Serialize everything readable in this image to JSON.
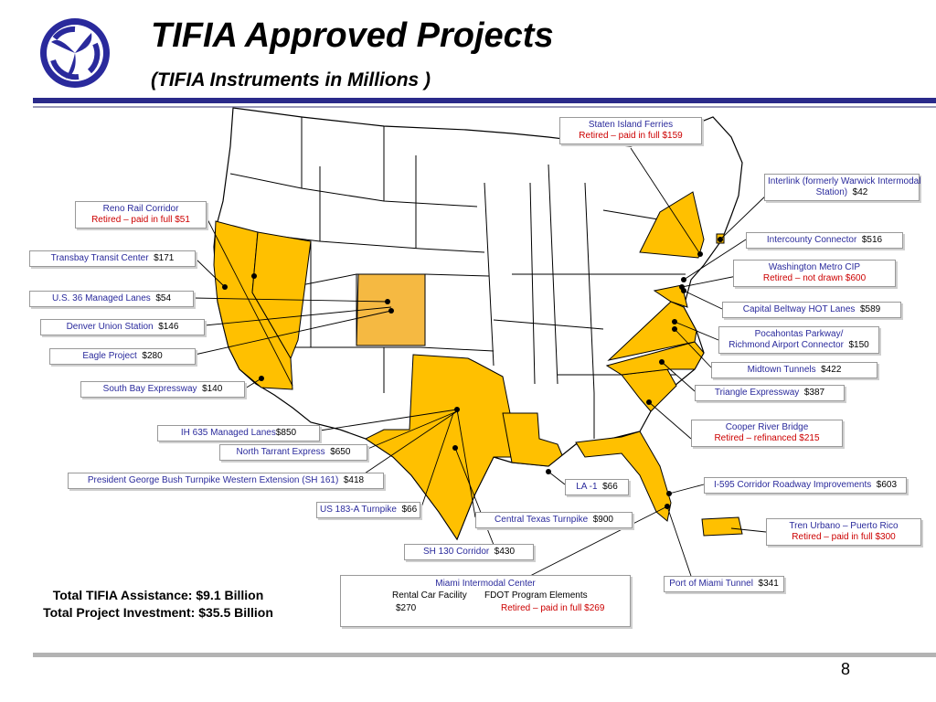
{
  "title": "TIFIA Approved Projects",
  "subtitle": "(TIFIA Instruments in Millions )",
  "page_number": "8",
  "colors": {
    "primary": "#2a2a9c",
    "highlight_state": "#ffc000",
    "highlight_state_alt": "#f5b942",
    "retired": "#cc0000"
  },
  "totals": {
    "assistance": "Total TIFIA Assistance: $9.1 Billion",
    "investment": "Total Project Investment:  $35.5 Billion"
  },
  "projects": {
    "staten": {
      "name": "Staten Island Ferries",
      "status": "Retired – paid in full  $159"
    },
    "interlink": {
      "name": "Interlink (formerly Warwick Intermodal",
      "name2": "Station)",
      "amount": "$42"
    },
    "intercounty": {
      "name": "Intercounty Connector",
      "amount": "$516"
    },
    "wmata": {
      "name": "Washington Metro CIP",
      "status": "Retired – not drawn $600"
    },
    "beltway": {
      "name": "Capital Beltway HOT Lanes",
      "amount": "$589"
    },
    "pocahontas": {
      "name": "Pocahontas Parkway/",
      "name2": "Richmond Airport Connector",
      "amount": "$150"
    },
    "midtown": {
      "name": "Midtown Tunnels",
      "amount": "$422"
    },
    "triangle": {
      "name": "Triangle Expressway",
      "amount": "$387"
    },
    "cooper": {
      "name": "Cooper River Bridge",
      "status": "Retired – refinanced  $215"
    },
    "i595": {
      "name": "I-595 Corridor Roadway Improvements",
      "amount": "$603"
    },
    "tren": {
      "name": "Tren Urbano – Puerto Rico",
      "status": "Retired – paid in full  $300"
    },
    "portmiami": {
      "name": "Port of Miami Tunnel",
      "amount": "$341"
    },
    "miami": {
      "name": "Miami Intermodal Center",
      "rental": "Rental Car Facility",
      "rental_amount": "$270",
      "fdot": "FDOT Program Elements",
      "fdot_status": "Retired – paid in full  $269"
    },
    "sh130": {
      "name": "SH 130 Corridor",
      "amount": "$430"
    },
    "centraltx": {
      "name": "Central Texas Turnpike",
      "amount": "$900"
    },
    "la1": {
      "name": "LA -1",
      "amount": "$66"
    },
    "us183": {
      "name": "US 183-A Turnpike",
      "amount": "$66"
    },
    "pgbt": {
      "name": "President George Bush Turnpike Western Extension (SH 161)",
      "amount": "$418"
    },
    "tarrant": {
      "name": "North Tarrant Express",
      "amount": "$650"
    },
    "ih635": {
      "name": "IH 635 Managed Lanes",
      "amount": "$850"
    },
    "southbay": {
      "name": "South Bay Expressway",
      "amount": "$140"
    },
    "eagle": {
      "name": "Eagle Project",
      "amount": "$280"
    },
    "denver": {
      "name": "Denver Union Station",
      "amount": "$146"
    },
    "us36": {
      "name": "U.S. 36 Managed Lanes",
      "amount": "$54"
    },
    "transbay": {
      "name": "Transbay Transit Center",
      "amount": "$171"
    },
    "reno": {
      "name": "Reno Rail Corridor",
      "status": "Retired – paid in full  $51"
    }
  }
}
